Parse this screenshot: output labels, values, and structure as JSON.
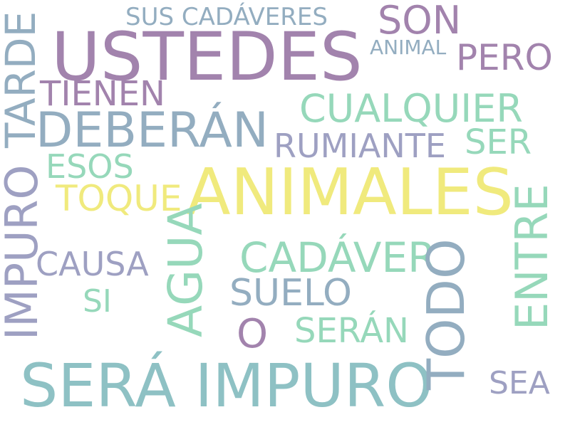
{
  "words": {
    "ustedes": "USTEDES",
    "animales": "ANIMALES",
    "sera_impuro": "SERÁ IMPURO",
    "deberan": "DEBERÁN",
    "cualquier": "CUALQUIER",
    "cadaver": "CADÁVER",
    "impuro": "IMPURO",
    "tarde": "TARDE",
    "todo": "TODO",
    "agua": "AGUA",
    "entre": "ENTRE",
    "son": "SON",
    "pero": "PERO",
    "tienen": "TIENEN",
    "rumiante": "RUMIANTE",
    "suelo": "SUELO",
    "toque": "TOQUE",
    "causa": "CAUSA",
    "seran": "SERÁN",
    "sus_cadaveres": "SUS CADÁVERES",
    "ser": "SER",
    "esos": "ESOS",
    "sea": "SEA",
    "o": "O",
    "si": "SI",
    "animal": "ANIMAL"
  },
  "colors": {
    "purple": "#a283ad",
    "yellow": "#f0ea7d",
    "teal": "#8ec1c4",
    "steel": "#93adc0",
    "mint": "#96d8ba",
    "lavender": "#9ea0c2"
  }
}
